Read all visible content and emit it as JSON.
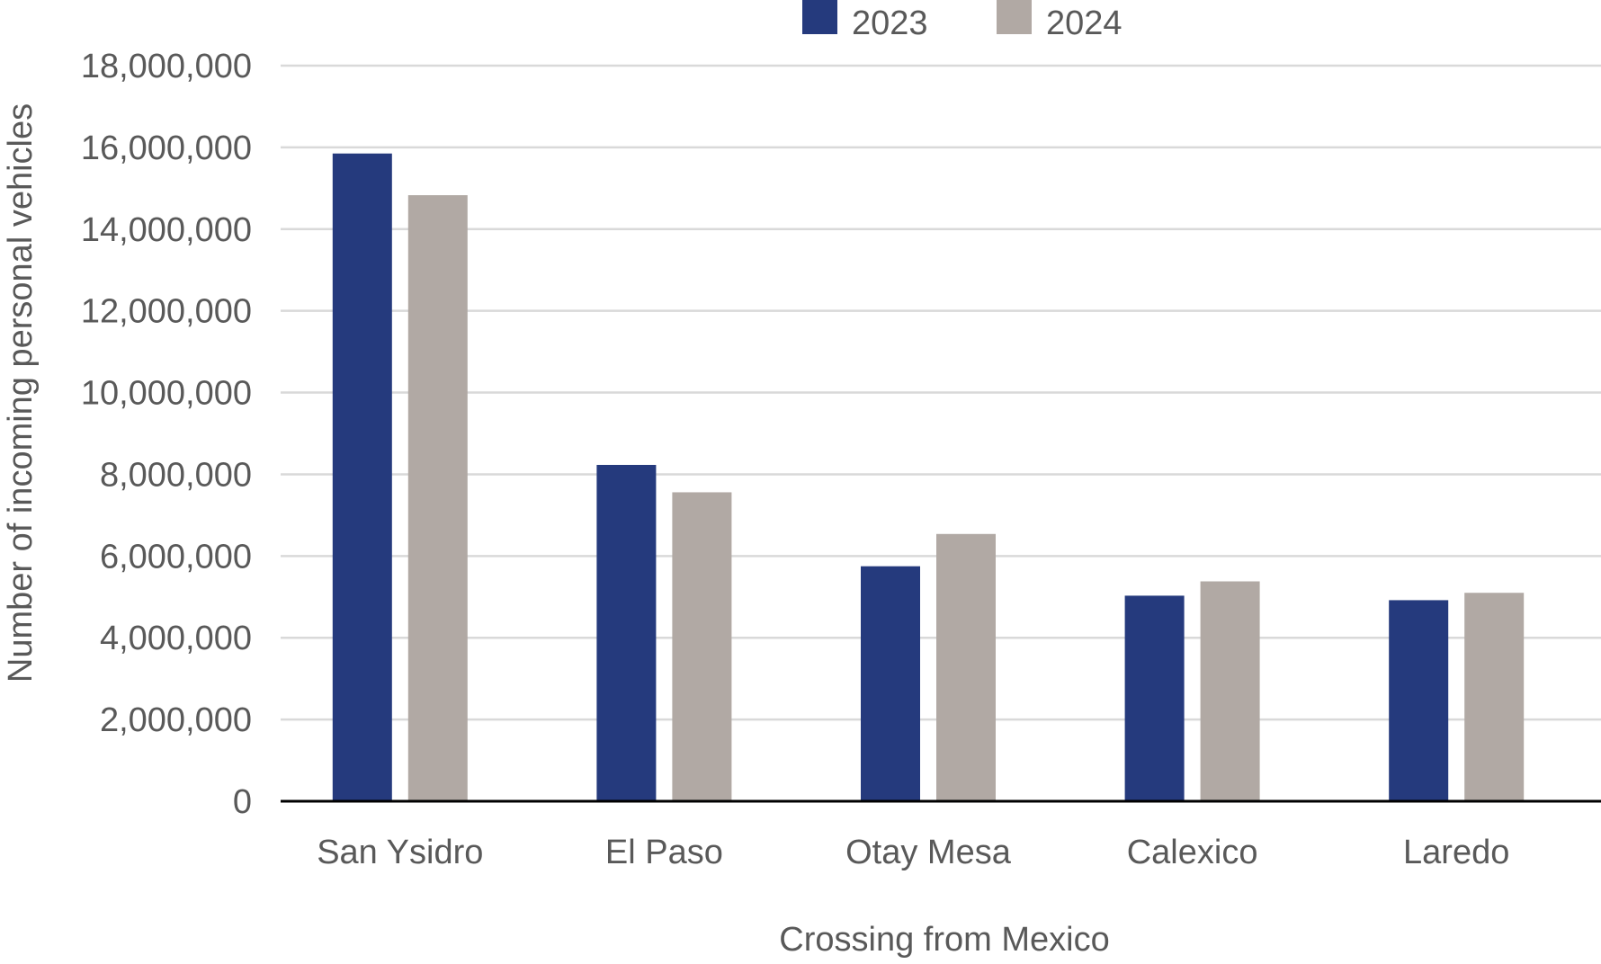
{
  "chart_data": {
    "type": "bar",
    "title": "",
    "xlabel": "Crossing from Mexico",
    "ylabel": "Number of incoming personal vehicles",
    "categories": [
      "San Ysidro",
      "El Paso",
      "Otay Mesa",
      "Calexico",
      "Laredo"
    ],
    "series": [
      {
        "name": "2023",
        "color": "#253a7d",
        "values": [
          15850000,
          8230000,
          5750000,
          5030000,
          4920000
        ]
      },
      {
        "name": "2024",
        "color": "#b1a9a4",
        "values": [
          14830000,
          7560000,
          6540000,
          5380000,
          5100000
        ]
      }
    ],
    "ylim": [
      0,
      18000000
    ],
    "yticks": [
      0,
      2000000,
      4000000,
      6000000,
      8000000,
      10000000,
      12000000,
      14000000,
      16000000,
      18000000
    ],
    "ytick_labels": [
      "0",
      "2,000,000",
      "4,000,000",
      "6,000,000",
      "8,000,000",
      "10,000,000",
      "12,000,000",
      "14,000,000",
      "16,000,000",
      "18,000,000"
    ],
    "grid": true,
    "legend_position": "top-center"
  }
}
